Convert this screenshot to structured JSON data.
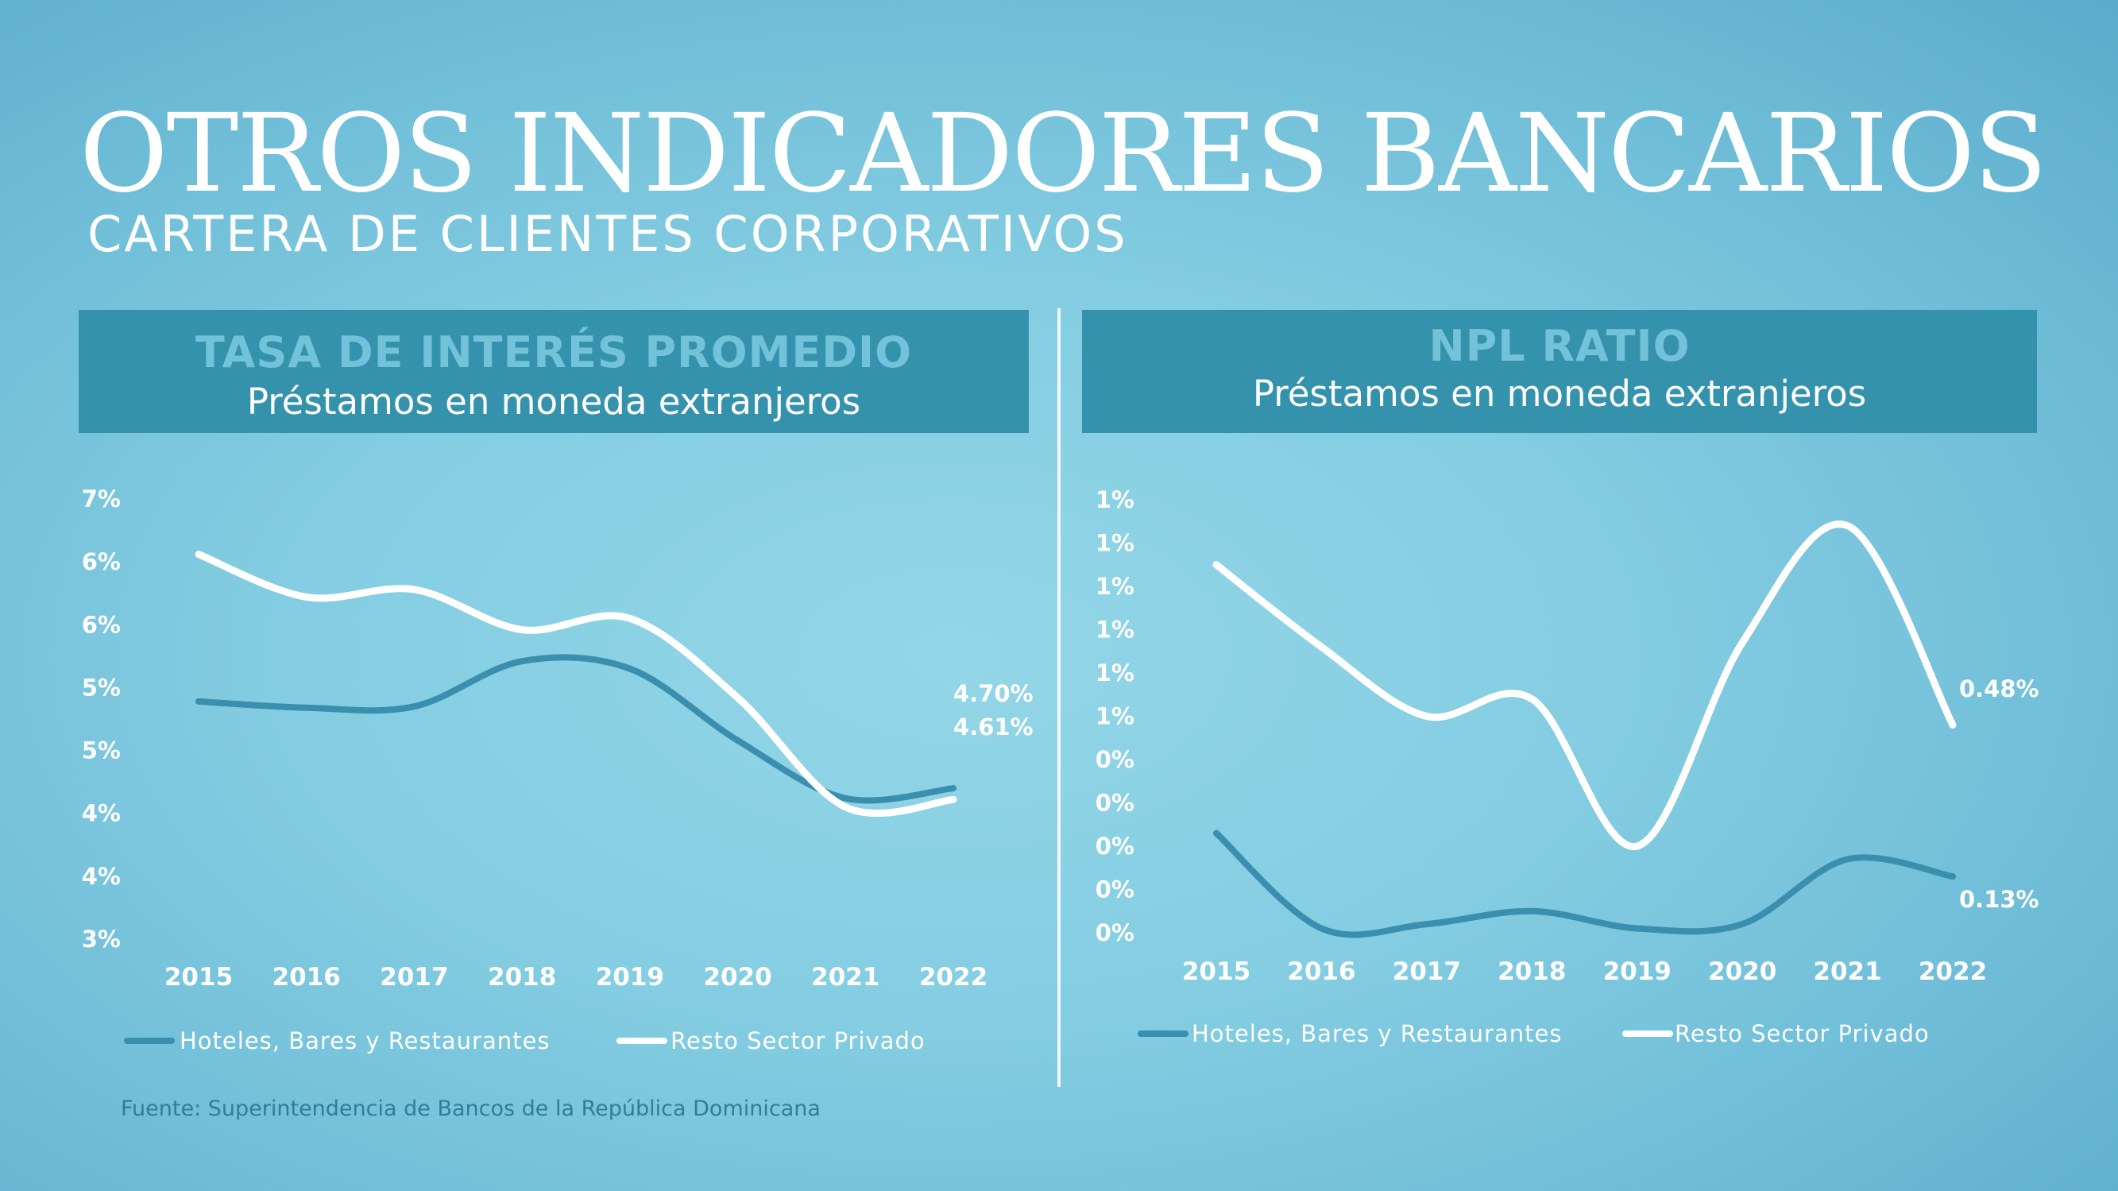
{
  "title": "OTROS INDICADORES BANCARIOS",
  "subtitle": "CARTERA DE CLIENTES CORPORATIVOS",
  "colors": {
    "dark_series": "#3b8fae",
    "light_series": "#ffffff",
    "header_bg": "#3592ad",
    "header_title": "#72c2d9",
    "source_text": "#2d7f98"
  },
  "panels": [
    {
      "title": "TASA DE INTERÉS PROMEDIO",
      "subtitle": "Préstamos en moneda extranjeros"
    },
    {
      "title": "NPL RATIO",
      "subtitle": "Préstamos en moneda extranjeros"
    }
  ],
  "source": "Fuente: Superintendencia de Bancos de la República Dominicana",
  "chart_data": [
    {
      "type": "line",
      "title": "TASA DE INTERÉS PROMEDIO",
      "subtitle": "Préstamos en moneda extranjeros",
      "categories": [
        "2015",
        "2016",
        "2017",
        "2018",
        "2019",
        "2020",
        "2021",
        "2022"
      ],
      "y_tick_labels": [
        "7%",
        "6%",
        "6%",
        "5%",
        "5%",
        "4%",
        "4%",
        "3%"
      ],
      "ylim": [
        3.5,
        7.0
      ],
      "grid": false,
      "legend": "bottom",
      "series": [
        {
          "name": "Hoteles, Bares y Restaurantes",
          "color": "#3b8fae",
          "values": [
            5.39,
            5.34,
            5.35,
            5.71,
            5.65,
            5.08,
            4.62,
            4.7
          ]
        },
        {
          "name": "Resto Sector Privado",
          "color": "#ffffff",
          "values": [
            6.56,
            6.22,
            6.28,
            5.96,
            6.05,
            5.42,
            4.55,
            4.61
          ]
        }
      ],
      "end_labels": [
        "4.70%",
        "4.61%"
      ]
    },
    {
      "type": "line",
      "title": "NPL RATIO",
      "subtitle": "Préstamos en moneda extranjeros",
      "categories": [
        "2015",
        "2016",
        "2017",
        "2018",
        "2019",
        "2020",
        "2021",
        "2022"
      ],
      "y_tick_labels": [
        "1%",
        "1%",
        "1%",
        "1%",
        "1%",
        "1%",
        "0%",
        "0%",
        "0%",
        "0%",
        "0%"
      ],
      "ylim": [
        0.0,
        1.0
      ],
      "grid": false,
      "legend": "bottom",
      "series": [
        {
          "name": "Hoteles, Bares y Restaurantes",
          "color": "#3b8fae",
          "values": [
            0.23,
            0.01,
            0.02,
            0.05,
            0.01,
            0.02,
            0.17,
            0.13
          ]
        },
        {
          "name": "Resto Sector Privado",
          "color": "#ffffff",
          "values": [
            0.85,
            0.66,
            0.5,
            0.54,
            0.2,
            0.67,
            0.94,
            0.48
          ]
        }
      ],
      "end_labels": [
        "0.13%",
        "0.48%"
      ]
    }
  ]
}
